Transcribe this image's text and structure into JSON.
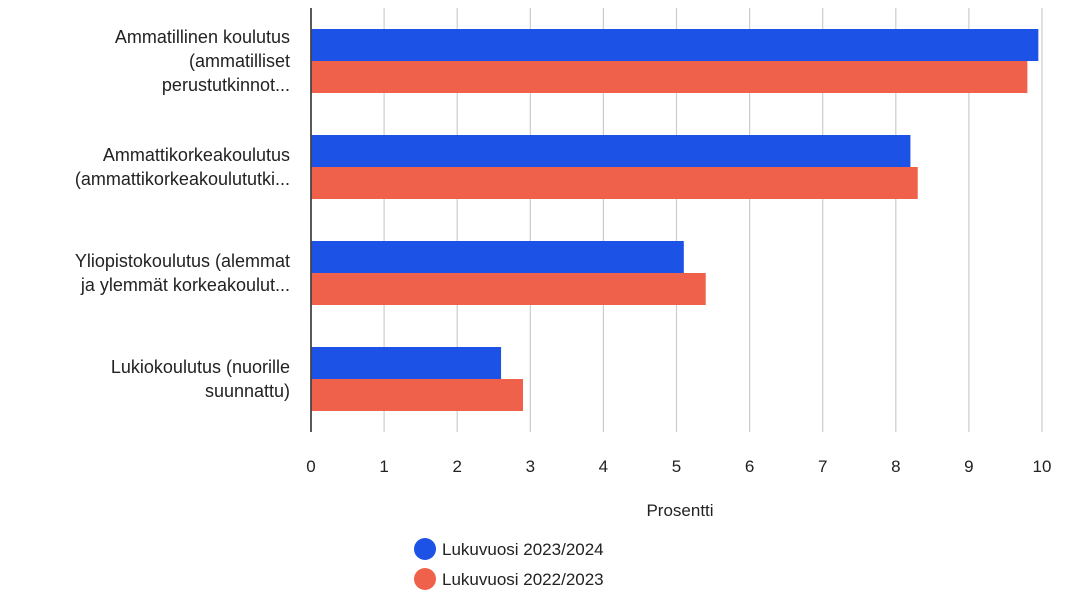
{
  "chart_data": {
    "type": "bar",
    "orientation": "horizontal",
    "categories": [
      [
        "Ammatillinen koulutus",
        "(ammatilliset",
        "perustutkinnot..."
      ],
      [
        "Ammattikorkeakoulutus",
        "(ammattikorkeakoulututki..."
      ],
      [
        "Yliopistokoulutus (alemmat",
        "ja ylemmät korkeakoulut..."
      ],
      [
        "Lukiokoulutus (nuorille",
        "suunnattu)"
      ]
    ],
    "series": [
      {
        "name": "Lukuvuosi 2023/2024",
        "color": "#1d52e6",
        "values": [
          9.95,
          8.2,
          5.1,
          2.6
        ]
      },
      {
        "name": "Lukuvuosi 2022/2023",
        "color": "#f0614b",
        "values": [
          9.8,
          8.3,
          5.4,
          2.9
        ]
      }
    ],
    "xlabel": "Prosentti",
    "xlim": [
      0,
      10
    ],
    "xticks": [
      "0",
      "1",
      "2",
      "3",
      "4",
      "5",
      "6",
      "7",
      "8",
      "9",
      "10"
    ],
    "grid": true,
    "legend_position": "bottom"
  }
}
